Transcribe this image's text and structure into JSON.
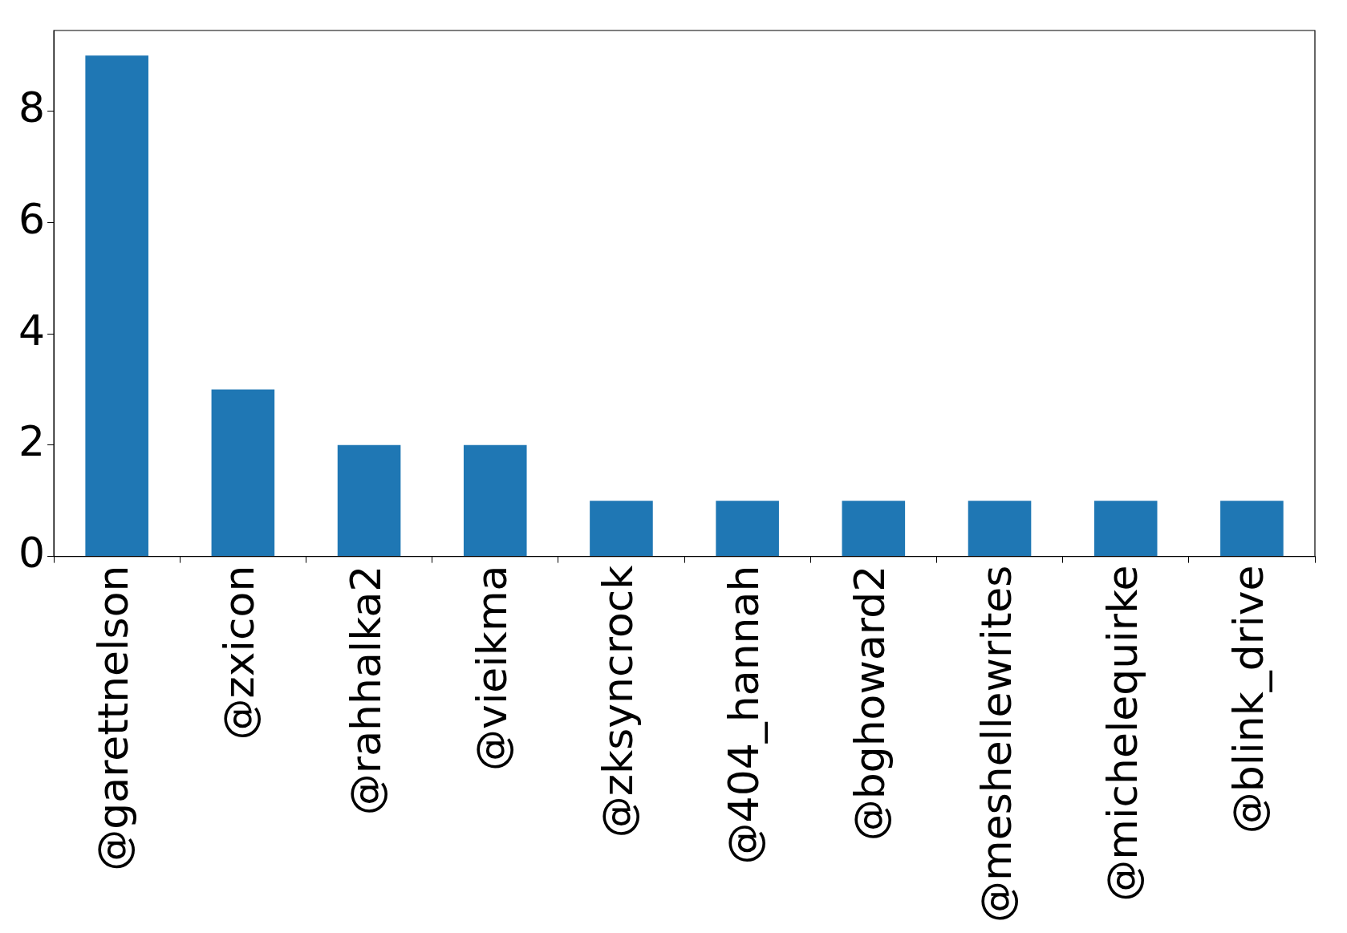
{
  "chart_data": {
    "type": "bar",
    "categories": [
      "@garettnelson",
      "@zxicon",
      "@rahhalka2",
      "@vieikma",
      "@zksyncrock",
      "@404_hannah",
      "@bghoward2",
      "@meshellewrites",
      "@michelequirke",
      "@blink_drive"
    ],
    "values": [
      9,
      3,
      2,
      2,
      1,
      1,
      1,
      1,
      1,
      1
    ],
    "color": "#1f77b4",
    "ylim": [
      0,
      9.45
    ],
    "yticks": [
      0,
      2,
      4,
      6,
      8
    ],
    "grid": false,
    "legend": false
  }
}
